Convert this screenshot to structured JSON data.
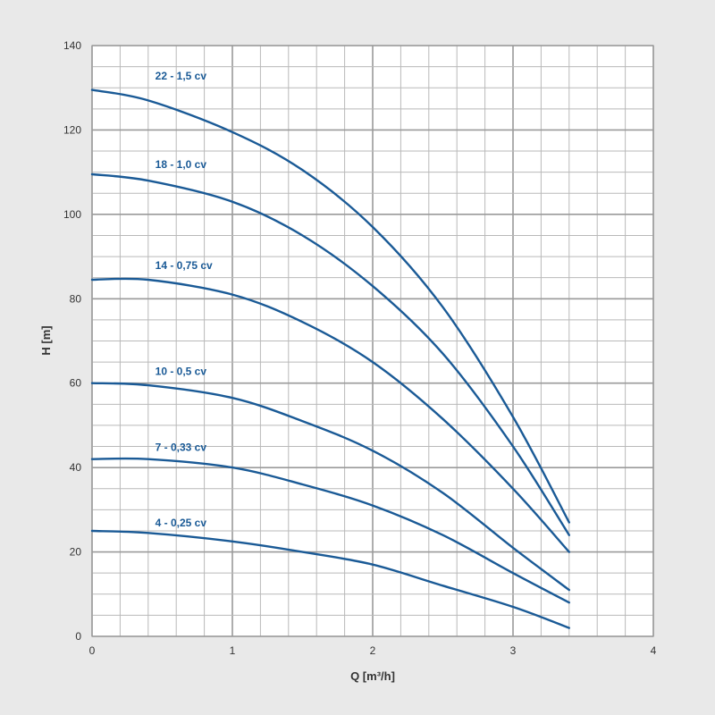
{
  "chart_data": {
    "type": "line",
    "xlabel": "Q [m³/h]",
    "ylabel": "H [m]",
    "xlim": [
      0,
      4
    ],
    "ylim": [
      0,
      140
    ],
    "xticks": [
      0,
      1,
      2,
      3,
      4
    ],
    "yticks": [
      0,
      20,
      40,
      60,
      80,
      100,
      120,
      140
    ],
    "x_minor_step": 0.2,
    "y_minor_step": 5,
    "grid": true,
    "colors": {
      "line": "#1a5a96",
      "label": "#1a5a96",
      "background": "#e9e9e9",
      "plot_background": "#ffffff",
      "grid": "#b9b9b9"
    },
    "x": [
      0,
      0.4,
      1.0,
      1.5,
      2.0,
      2.5,
      3.0,
      3.4
    ],
    "series": [
      {
        "name": "22 - 1,5 cv",
        "values": [
          129.5,
          127,
          119.5,
          110.5,
          97,
          78,
          52,
          27
        ]
      },
      {
        "name": "18 - 1,0 cv",
        "values": [
          109.5,
          108,
          103,
          95,
          83,
          67,
          45,
          24
        ]
      },
      {
        "name": "14 - 0,75 cv",
        "values": [
          84.5,
          84.5,
          81,
          74.5,
          65,
          51.5,
          35,
          20
        ]
      },
      {
        "name": "10 - 0,5 cv",
        "values": [
          60,
          59.5,
          56.5,
          51,
          44,
          34,
          21,
          11
        ]
      },
      {
        "name": "7 - 0,33 cv",
        "values": [
          42,
          42,
          40,
          36,
          31,
          24,
          15,
          8
        ]
      },
      {
        "name": "4 - 0,25 cv",
        "values": [
          25,
          24.5,
          22.5,
          20,
          17,
          12,
          7,
          2
        ]
      }
    ],
    "label_anchor_x": [
      0.45,
      0.45,
      0.45,
      0.45,
      0.45,
      0.45
    ],
    "label_anchor_y": [
      132,
      111,
      87,
      62,
      44,
      26
    ]
  }
}
